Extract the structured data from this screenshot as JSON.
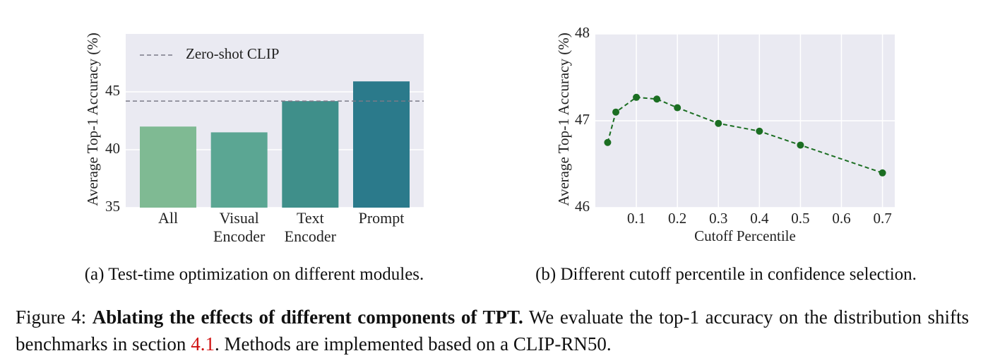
{
  "chart_data": [
    {
      "type": "bar",
      "ylabel": "Average Top-1 Accuracy (%)",
      "categories": [
        "All",
        "Visual Encoder",
        "Text Encoder",
        "Prompt"
      ],
      "values": [
        42.0,
        41.5,
        44.2,
        45.9
      ],
      "colors": [
        "#7fba93",
        "#5ba693",
        "#3f8f8a",
        "#2b7a8b"
      ],
      "reference_lines": [
        {
          "name": "Zero-shot CLIP",
          "value": 44.2,
          "color": "#7a7a88"
        }
      ],
      "ylim": [
        35,
        50
      ],
      "yticks": [
        35,
        40,
        45
      ],
      "grid": true,
      "caption": "(a) Test-time optimization on different modules."
    },
    {
      "type": "line",
      "ylabel": "Average Top-1 Accuracy (%)",
      "xlabel": "Cutoff Percentile",
      "x": [
        0.03,
        0.05,
        0.1,
        0.15,
        0.2,
        0.3,
        0.4,
        0.5,
        0.7
      ],
      "values": [
        46.75,
        47.1,
        47.27,
        47.25,
        47.15,
        46.97,
        46.88,
        46.72,
        46.4
      ],
      "color": "#1b6e22",
      "xlim": [
        0,
        0.73
      ],
      "xticks": [
        0.1,
        0.2,
        0.3,
        0.4,
        0.5,
        0.6,
        0.7
      ],
      "ylim": [
        46,
        48
      ],
      "yticks": [
        46,
        47,
        48
      ],
      "grid": true,
      "caption": "(b) Different cutoff percentile in confidence selection."
    }
  ],
  "figure_caption": {
    "label": "Figure 4:",
    "bold": "Ablating the effects of different components of TPT.",
    "text": "We evaluate the top-1 accuracy on the distribution shifts benchmarks in section",
    "ref": "4.1",
    "end": ". Methods are implemented based on a CLIP-RN50."
  }
}
